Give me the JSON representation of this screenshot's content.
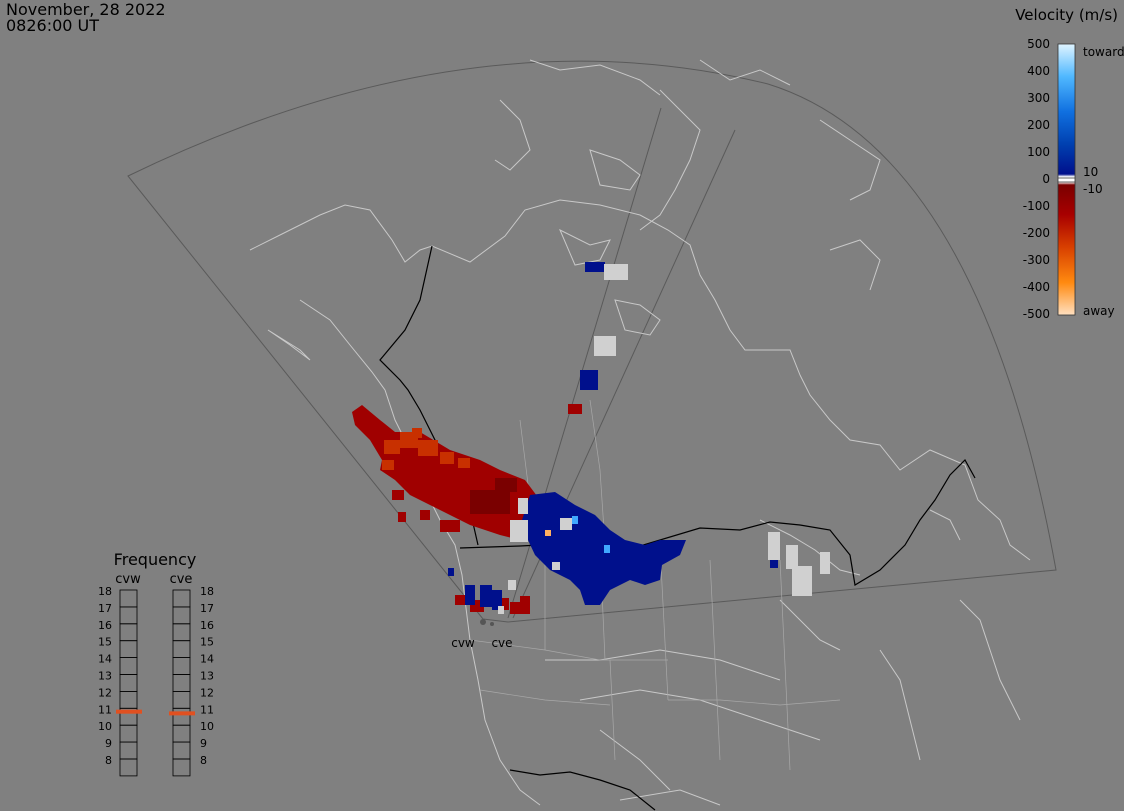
{
  "header": {
    "date": "November, 28 2022",
    "time": "0826:00 UT"
  },
  "velocity_scale": {
    "title": "Velocity (m/s)",
    "ticks": [
      "500",
      "400",
      "300",
      "200",
      "100",
      "0",
      "-100",
      "-200",
      "-300",
      "-400",
      "-500"
    ],
    "threshold_pos": "10",
    "threshold_neg": "-10",
    "toward_label": "toward",
    "away_label": "away"
  },
  "frequency": {
    "title": "Frequency",
    "radars": [
      "cvw",
      "cve"
    ],
    "levels": [
      "18",
      "17",
      "16",
      "15",
      "14",
      "13",
      "12",
      "11",
      "10",
      "9",
      "8"
    ],
    "current": {
      "cvw": 10.8,
      "cve": 10.7
    },
    "marker_color": "#e05020"
  },
  "radars": {
    "west_label": "cvw",
    "east_label": "cve"
  },
  "colors": {
    "background": "#808080",
    "coast": "#c8c8c8",
    "border": "#000000",
    "fov": "#5a5a5a",
    "toward": "#00108c",
    "away": "#a00000",
    "ground_scatter": "#d0d0d0"
  }
}
